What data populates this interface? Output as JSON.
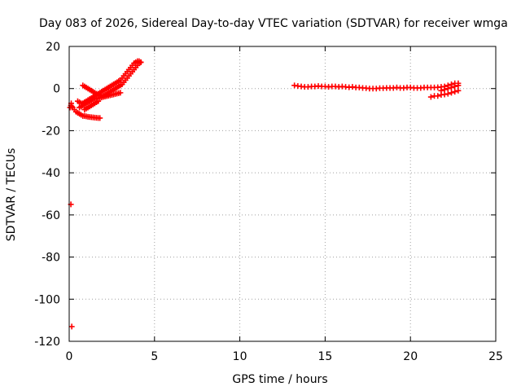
{
  "chart_data": {
    "type": "scatter",
    "title": "Day 083 of 2026, Sidereal Day-to-day VTEC variation (SDTVAR) for receiver wmga",
    "xlabel": "GPS time / hours",
    "ylabel": "SDTVAR / TECUs",
    "xlim": [
      0,
      25
    ],
    "ylim": [
      -120,
      20
    ],
    "xticks": [
      0,
      5,
      10,
      15,
      20,
      25
    ],
    "yticks": [
      20,
      0,
      -20,
      -40,
      -60,
      -80,
      -100,
      -120
    ],
    "grid": true,
    "marker": "plus",
    "color": "#ff0000",
    "series": [
      {
        "x": [
          0.05,
          0.1,
          0.15,
          0.2,
          0.3,
          0.4,
          0.5,
          0.6,
          0.7,
          0.8,
          0.9,
          1.0,
          1.1,
          1.2,
          1.3,
          1.4,
          1.5,
          1.6,
          1.7,
          1.8,
          0.5,
          0.6,
          0.7,
          0.8,
          0.9,
          1.0,
          1.1,
          1.2,
          1.3,
          1.4,
          1.5,
          1.6,
          1.7,
          1.8,
          1.9,
          2.0,
          2.1,
          2.2,
          2.3,
          2.4,
          2.5,
          2.6,
          2.7,
          2.8,
          2.9,
          3.0,
          3.1,
          3.2,
          3.3,
          3.4,
          3.5,
          3.6,
          3.7,
          3.8,
          3.9,
          4.0,
          4.1,
          4.2,
          0.8,
          0.9,
          1.0,
          1.1,
          1.2,
          1.3,
          1.4,
          1.5,
          1.6,
          1.7,
          1.8,
          1.9,
          2.0,
          2.1,
          2.2,
          2.3,
          2.4,
          2.5,
          2.6,
          2.7,
          2.8,
          2.9,
          3.0,
          3.1,
          3.2,
          3.3,
          3.4,
          3.5,
          3.6,
          3.7,
          3.8,
          3.9,
          4.0,
          4.1,
          4.2,
          0.6,
          0.7,
          0.8,
          0.9,
          1.0,
          1.1,
          1.2,
          1.3,
          1.4,
          1.5,
          1.6,
          1.7,
          1.8,
          1.9,
          2.0,
          2.1,
          2.2,
          2.3,
          2.4,
          2.5,
          2.6,
          2.7,
          2.8,
          2.9,
          3.0,
          0.9,
          1.0,
          1.1,
          1.2,
          1.3,
          1.4,
          1.5,
          1.6,
          1.7,
          0.1,
          0.15,
          0.12
        ],
        "y": [
          -9,
          -8,
          -8.5,
          -9,
          -10,
          -11,
          -11.5,
          -12,
          -12.5,
          -13,
          -13,
          -13.2,
          -13.4,
          -13.5,
          -13.6,
          -13.7,
          -13.8,
          -13.9,
          -14,
          -14,
          -6,
          -6.5,
          -7,
          -7,
          -6.5,
          -6,
          -5.5,
          -5,
          -4.5,
          -4,
          -3.5,
          -3,
          -2.5,
          -2,
          -1.5,
          -1,
          -0.5,
          0,
          0.5,
          1,
          1.5,
          2,
          2.5,
          3,
          3.5,
          4,
          5,
          6,
          7,
          8,
          9,
          10,
          11,
          12,
          12.5,
          13,
          13,
          12.5,
          1.5,
          1,
          0.5,
          0,
          -0.5,
          -1,
          -1.5,
          -2,
          -2.5,
          -3,
          -3.5,
          -3.5,
          -3.5,
          -3,
          -2.5,
          -2,
          -1.5,
          -1,
          -0.5,
          0,
          0.5,
          1,
          1.5,
          2,
          3,
          4,
          5,
          6,
          7,
          8,
          9,
          10,
          11,
          12,
          12.5,
          -9,
          -8.5,
          -8,
          -7.5,
          -7,
          -6.5,
          -6,
          -5.5,
          -5,
          -5,
          -4.8,
          -4.6,
          -4.4,
          -4.2,
          -4,
          -3.8,
          -3.6,
          -3.4,
          -3.2,
          -3,
          -2.8,
          -2.6,
          -2.4,
          -2.2,
          -2,
          -10,
          -9.5,
          -9,
          -8.5,
          -8,
          -7.5,
          -7,
          -6.5,
          -6,
          -55,
          -113,
          -7
        ]
      },
      {
        "x": [
          13.2,
          13.4,
          13.6,
          13.8,
          14.0,
          14.2,
          14.4,
          14.6,
          14.8,
          15.0,
          15.2,
          15.4,
          15.6,
          15.8,
          16.0,
          16.2,
          16.4,
          16.6,
          16.8,
          17.0,
          17.2,
          17.4,
          17.6,
          17.8,
          18.0,
          18.2,
          18.4,
          18.6,
          18.8,
          19.0,
          19.2,
          19.4,
          19.6,
          19.8,
          20.0,
          20.2,
          20.4,
          20.6,
          20.8,
          21.0,
          21.2,
          21.4,
          21.6,
          21.8,
          22.0,
          22.2,
          22.4,
          22.6,
          22.8,
          21.2,
          21.4,
          21.6,
          21.8,
          22.0,
          22.2,
          22.4,
          22.6,
          22.8,
          21.8,
          22.0,
          22.2,
          22.4,
          22.6,
          22.8
        ],
        "y": [
          1.5,
          1.2,
          1,
          0.8,
          0.8,
          1,
          1,
          1.2,
          1,
          1,
          0.8,
          1,
          1,
          0.8,
          1,
          0.8,
          0.6,
          0.8,
          0.5,
          0.5,
          0.3,
          0.2,
          0,
          0,
          0,
          0.2,
          0.2,
          0.3,
          0.3,
          0.3,
          0.5,
          0.3,
          0.3,
          0.5,
          0.5,
          0.3,
          0.3,
          0.3,
          0.5,
          0.5,
          0.5,
          0.5,
          0.6,
          0.8,
          1,
          1.5,
          2,
          2.5,
          2.5,
          -4,
          -3.5,
          -3.5,
          -3,
          -2.8,
          -2.5,
          -2,
          -1.5,
          -1,
          -1,
          -0.5,
          0,
          0.5,
          1,
          1.5
        ]
      }
    ]
  }
}
